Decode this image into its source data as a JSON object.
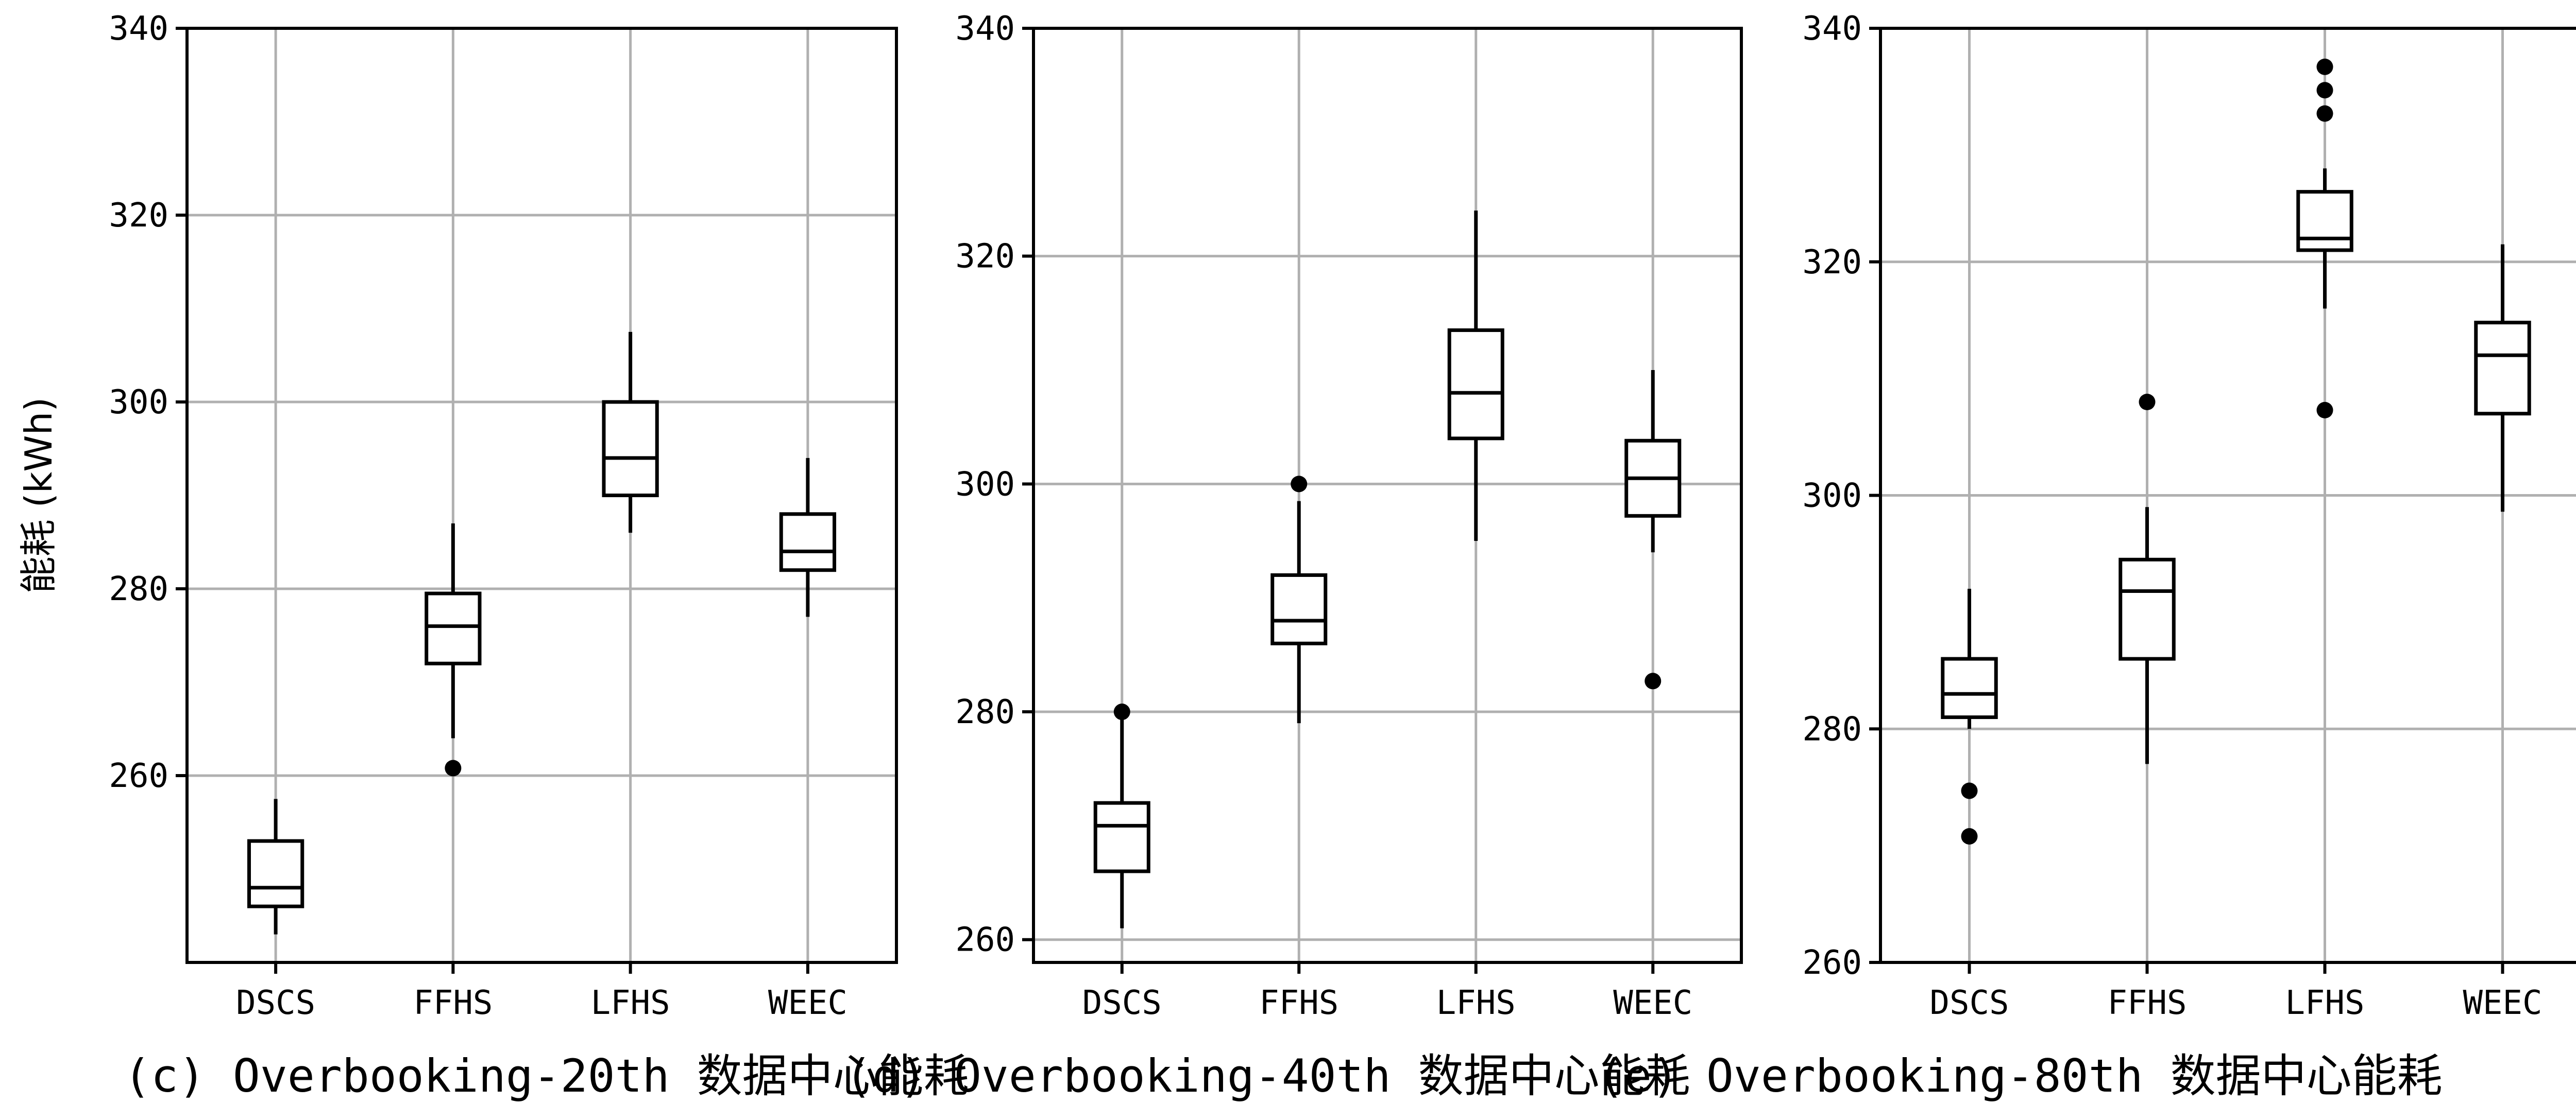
{
  "chart_data": [
    {
      "type": "boxplot",
      "caption": "(c) Overbooking-20th 数据中心能耗",
      "ylabel": "能耗 (kWh)",
      "ylim": [
        240,
        340
      ],
      "yticks": [
        260,
        280,
        300,
        320,
        340
      ],
      "grid": true,
      "categories": [
        "DSCS",
        "FFHS",
        "LFHS",
        "WEEC"
      ],
      "boxes": [
        {
          "name": "DSCS",
          "whislo": 243,
          "q1": 246,
          "median": 248,
          "q3": 253,
          "whishi": 257.5,
          "fliers": []
        },
        {
          "name": "FFHS",
          "whislo": 264,
          "q1": 272,
          "median": 276,
          "q3": 279.5,
          "whishi": 287,
          "fliers": [
            260.8
          ]
        },
        {
          "name": "LFHS",
          "whislo": 286,
          "q1": 290,
          "median": 294,
          "q3": 300,
          "whishi": 307.5,
          "fliers": []
        },
        {
          "name": "WEEC",
          "whislo": 277,
          "q1": 282,
          "median": 284,
          "q3": 288,
          "whishi": 294,
          "fliers": []
        }
      ]
    },
    {
      "type": "boxplot",
      "caption": "(d) Overbooking-40th 数据中心能耗",
      "ylabel": "",
      "ylim": [
        258,
        340
      ],
      "yticks": [
        260,
        280,
        300,
        320,
        340
      ],
      "grid": true,
      "categories": [
        "DSCS",
        "FFHS",
        "LFHS",
        "WEEC"
      ],
      "boxes": [
        {
          "name": "DSCS",
          "whislo": 261,
          "q1": 266,
          "median": 270,
          "q3": 272,
          "whishi": 280,
          "fliers": [
            280
          ]
        },
        {
          "name": "FFHS",
          "whislo": 279,
          "q1": 286,
          "median": 288,
          "q3": 292,
          "whishi": 298.5,
          "fliers": [
            300
          ]
        },
        {
          "name": "LFHS",
          "whislo": 295,
          "q1": 304,
          "median": 308,
          "q3": 313.5,
          "whishi": 324,
          "fliers": []
        },
        {
          "name": "WEEC",
          "whislo": 294,
          "q1": 297.2,
          "median": 300.5,
          "q3": 303.8,
          "whishi": 310,
          "fliers": [
            282.7
          ]
        }
      ]
    },
    {
      "type": "boxplot",
      "caption": "(e) Overbooking-80th 数据中心能耗",
      "ylabel": "",
      "ylim": [
        260,
        340
      ],
      "yticks": [
        260,
        280,
        300,
        320,
        340
      ],
      "grid": true,
      "categories": [
        "DSCS",
        "FFHS",
        "LFHS",
        "WEEC"
      ],
      "boxes": [
        {
          "name": "DSCS",
          "whislo": 280,
          "q1": 281,
          "median": 283,
          "q3": 286,
          "whishi": 292,
          "fliers": [
            274.7,
            270.8
          ]
        },
        {
          "name": "FFHS",
          "whislo": 277,
          "q1": 286,
          "median": 291.8,
          "q3": 294.5,
          "whishi": 299,
          "fliers": [
            308
          ]
        },
        {
          "name": "LFHS",
          "whislo": 316,
          "q1": 321,
          "median": 322,
          "q3": 326,
          "whishi": 328,
          "fliers": [
            307.3,
            332.7,
            334.7,
            336.7
          ]
        },
        {
          "name": "WEEC",
          "whislo": 298.6,
          "q1": 307,
          "median": 312,
          "q3": 314.8,
          "whishi": 321.5,
          "fliers": []
        }
      ]
    }
  ]
}
